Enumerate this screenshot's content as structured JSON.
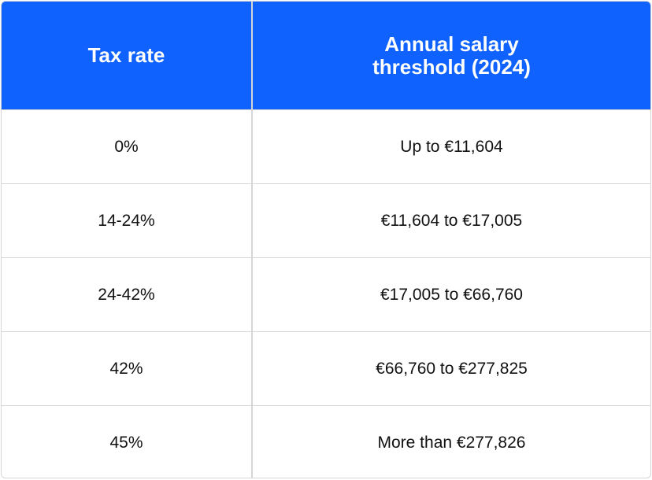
{
  "table": {
    "header": [
      "Tax rate",
      "Annual salary threshold (2024)"
    ],
    "rows": [
      [
        "0%",
        "Up to €11,604"
      ],
      [
        "14-24%",
        "€11,604 to €17,005"
      ],
      [
        "24-42%",
        "€17,005 to €66,760"
      ],
      [
        "42%",
        "€66,760 to €277,825"
      ],
      [
        "45%",
        "More than €277,826"
      ]
    ]
  }
}
